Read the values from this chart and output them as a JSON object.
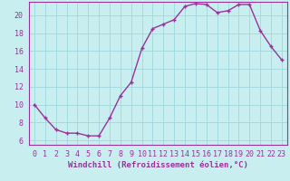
{
  "x": [
    0,
    1,
    2,
    3,
    4,
    5,
    6,
    7,
    8,
    9,
    10,
    11,
    12,
    13,
    14,
    15,
    16,
    17,
    18,
    19,
    20,
    21,
    22,
    23
  ],
  "y": [
    10,
    8.5,
    7.2,
    6.8,
    6.8,
    6.5,
    6.5,
    8.5,
    11.0,
    12.5,
    16.3,
    18.5,
    19.0,
    19.5,
    21.0,
    21.3,
    21.2,
    20.3,
    20.5,
    21.2,
    21.2,
    18.3,
    16.5,
    15.0
  ],
  "line_color": "#993399",
  "marker": "+",
  "marker_size": 3.5,
  "marker_lw": 1.0,
  "bg_color": "#c8eef0",
  "grid_color": "#a0d8dc",
  "xlabel": "Windchill (Refroidissement éolien,°C)",
  "xlim": [
    -0.5,
    23.5
  ],
  "ylim": [
    5.5,
    21.5
  ],
  "yticks": [
    6,
    8,
    10,
    12,
    14,
    16,
    18,
    20
  ],
  "xticks": [
    0,
    1,
    2,
    3,
    4,
    5,
    6,
    7,
    8,
    9,
    10,
    11,
    12,
    13,
    14,
    15,
    16,
    17,
    18,
    19,
    20,
    21,
    22,
    23
  ],
  "xlabel_fontsize": 6.5,
  "tick_fontsize": 6.0,
  "line_width": 1.0,
  "tick_color": "#993399",
  "spine_color": "#993399",
  "label_color": "#993399"
}
